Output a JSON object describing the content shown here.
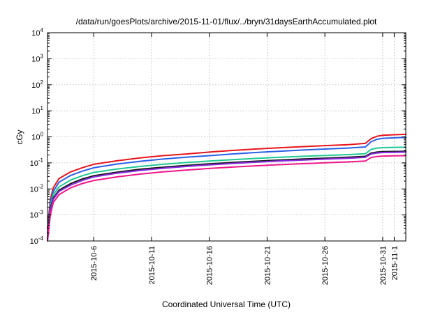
{
  "chart_data": {
    "type": "line",
    "title": "/data/run/goesPlots/archive/2015-11-01/flux/../bryn/31daysEarthAccumulated.plot",
    "xlabel": "Coordinated Universal Time (UTC)",
    "ylabel": "cGy",
    "y_scale": "log",
    "ylim": [
      0.0001,
      10000
    ],
    "y_ticks": [
      {
        "base": "10",
        "exp": "-4",
        "value": 0.0001
      },
      {
        "base": "10",
        "exp": "-3",
        "value": 0.001
      },
      {
        "base": "10",
        "exp": "-2",
        "value": 0.01
      },
      {
        "base": "10",
        "exp": "-1",
        "value": 0.1
      },
      {
        "base": "10",
        "exp": "0",
        "value": 1
      },
      {
        "base": "10",
        "exp": "1",
        "value": 10
      },
      {
        "base": "10",
        "exp": "2",
        "value": 100
      },
      {
        "base": "10",
        "exp": "3",
        "value": 1000
      },
      {
        "base": "10",
        "exp": "4",
        "value": 10000
      }
    ],
    "xlim": [
      "2015-10-02",
      "2015-11-02"
    ],
    "x_ticks": [
      "2015-10-6",
      "2015-10-11",
      "2015-10-16",
      "2015-10-21",
      "2015-10-26",
      "2015-10-31",
      "2015-11-1"
    ],
    "grid": true,
    "x": [
      "2015-10-02",
      "2015-10-02 06:00",
      "2015-10-02 12:00",
      "2015-10-03",
      "2015-10-04",
      "2015-10-05",
      "2015-10-06",
      "2015-10-08",
      "2015-10-10",
      "2015-10-12",
      "2015-10-14",
      "2015-10-16",
      "2015-10-18",
      "2015-10-20",
      "2015-10-22",
      "2015-10-24",
      "2015-10-26",
      "2015-10-28",
      "2015-10-29 12:00",
      "2015-10-30",
      "2015-10-30 12:00",
      "2015-10-31",
      "2015-11-01",
      "2015-11-02"
    ],
    "series": [
      {
        "color": "#e8141c",
        "values": [
          0.0003,
          0.004,
          0.011,
          0.025,
          0.045,
          0.065,
          0.088,
          0.12,
          0.155,
          0.19,
          0.22,
          0.26,
          0.3,
          0.34,
          0.38,
          0.42,
          0.46,
          0.5,
          0.56,
          0.85,
          1.05,
          1.15,
          1.2,
          1.25
        ]
      },
      {
        "color": "#2a5fe8",
        "values": [
          0.0002,
          0.003,
          0.008,
          0.018,
          0.033,
          0.048,
          0.065,
          0.09,
          0.115,
          0.14,
          0.165,
          0.19,
          0.22,
          0.25,
          0.28,
          0.31,
          0.34,
          0.37,
          0.41,
          0.65,
          0.8,
          0.88,
          0.92,
          0.95
        ]
      },
      {
        "color": "#1fc994",
        "values": [
          0.00015,
          0.0022,
          0.006,
          0.012,
          0.022,
          0.032,
          0.043,
          0.058,
          0.073,
          0.088,
          0.103,
          0.118,
          0.133,
          0.148,
          0.163,
          0.178,
          0.193,
          0.208,
          0.225,
          0.33,
          0.37,
          0.385,
          0.395,
          0.4
        ]
      },
      {
        "color": "#1a1a1a",
        "values": [
          0.00012,
          0.0018,
          0.0045,
          0.009,
          0.016,
          0.024,
          0.032,
          0.044,
          0.057,
          0.068,
          0.08,
          0.092,
          0.104,
          0.116,
          0.128,
          0.14,
          0.152,
          0.164,
          0.178,
          0.24,
          0.26,
          0.27,
          0.275,
          0.28
        ]
      },
      {
        "color": "#8a2be2",
        "values": [
          0.0001,
          0.0015,
          0.004,
          0.008,
          0.014,
          0.021,
          0.029,
          0.04,
          0.051,
          0.062,
          0.073,
          0.084,
          0.095,
          0.106,
          0.117,
          0.128,
          0.139,
          0.15,
          0.163,
          0.22,
          0.24,
          0.25,
          0.255,
          0.26
        ]
      },
      {
        "color": "#f0168a",
        "values": [
          0.0001,
          0.001,
          0.003,
          0.006,
          0.011,
          0.016,
          0.021,
          0.029,
          0.037,
          0.045,
          0.053,
          0.061,
          0.069,
          0.077,
          0.085,
          0.093,
          0.101,
          0.109,
          0.118,
          0.16,
          0.175,
          0.183,
          0.187,
          0.19
        ]
      }
    ]
  }
}
